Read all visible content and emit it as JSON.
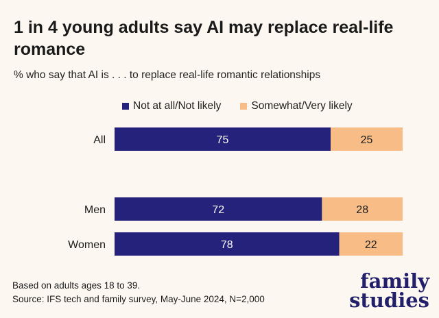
{
  "title": "1 in 4 young adults say AI may replace real-life romance",
  "subtitle": "% who say that AI is . . . to replace real-life romantic relationships",
  "footnote": {
    "line1": "Based on adults ages 18 to 39.",
    "line2": "Source: IFS tech and family survey, May-June 2024, N=2,000"
  },
  "logo": {
    "line1": "family",
    "line2": "studies"
  },
  "colors": {
    "not_likely": "#24227a",
    "likely": "#f8bd87",
    "background": "#fcf7f1"
  },
  "chart_data": {
    "type": "bar",
    "orientation": "horizontal",
    "stacked": true,
    "categories": [
      "All",
      "Men",
      "Women"
    ],
    "series": [
      {
        "name": "Not at all/Not likely",
        "values": [
          75,
          72,
          78
        ]
      },
      {
        "name": "Somewhat/Very likely",
        "values": [
          25,
          28,
          22
        ]
      }
    ],
    "xlim": [
      0,
      100
    ],
    "grid": false,
    "legend": "top"
  }
}
